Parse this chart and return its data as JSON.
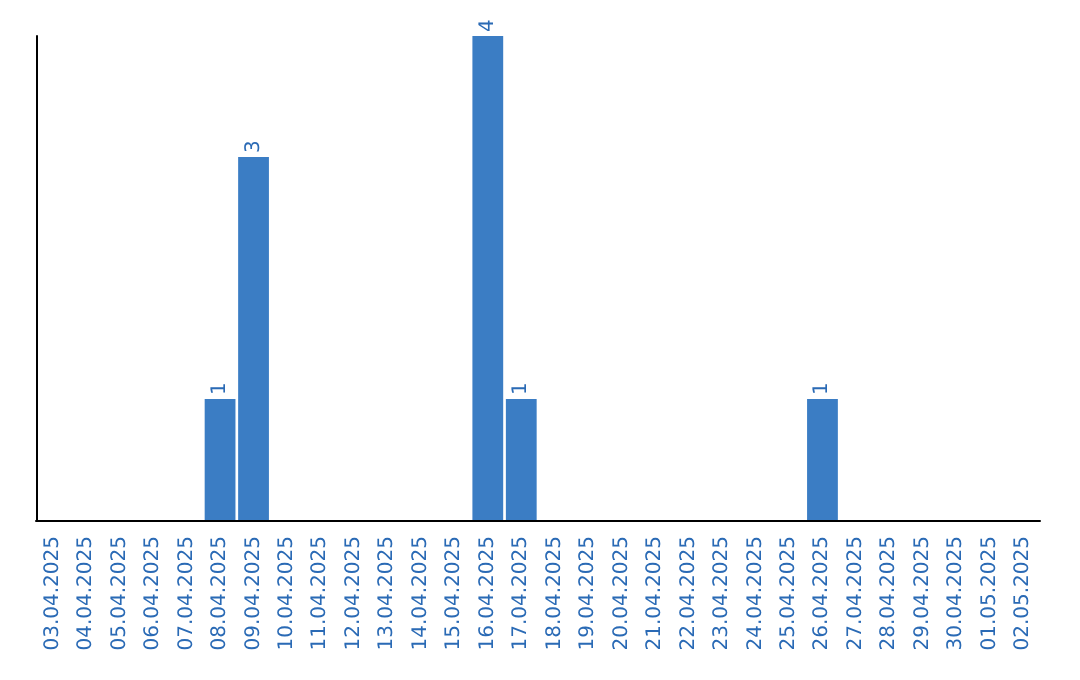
{
  "chart_data": {
    "type": "bar",
    "categories": [
      "03.04.2025",
      "04.04.2025",
      "05.04.2025",
      "06.04.2025",
      "07.04.2025",
      "08.04.2025",
      "09.04.2025",
      "10.04.2025",
      "11.04.2025",
      "12.04.2025",
      "13.04.2025",
      "14.04.2025",
      "15.04.2025",
      "16.04.2025",
      "17.04.2025",
      "18.04.2025",
      "19.04.2025",
      "20.04.2025",
      "21.04.2025",
      "22.04.2025",
      "23.04.2025",
      "24.04.2025",
      "25.04.2025",
      "26.04.2025",
      "27.04.2025",
      "28.04.2025",
      "29.04.2025",
      "30.04.2025",
      "01.05.2025",
      "02.05.2025"
    ],
    "values": [
      0,
      0,
      0,
      0,
      0,
      1,
      3,
      0,
      0,
      0,
      0,
      0,
      0,
      4,
      1,
      0,
      0,
      0,
      0,
      0,
      0,
      0,
      0,
      1,
      0,
      0,
      0,
      0,
      0,
      0
    ],
    "value_labels": [
      null,
      null,
      null,
      null,
      null,
      "1",
      "3",
      null,
      null,
      null,
      null,
      null,
      null,
      "4",
      "1",
      null,
      null,
      null,
      null,
      null,
      null,
      null,
      null,
      "1",
      null,
      null,
      null,
      null,
      null,
      null
    ],
    "color": "#3b7dc4",
    "grid": false,
    "tick_labels": "x"
  }
}
